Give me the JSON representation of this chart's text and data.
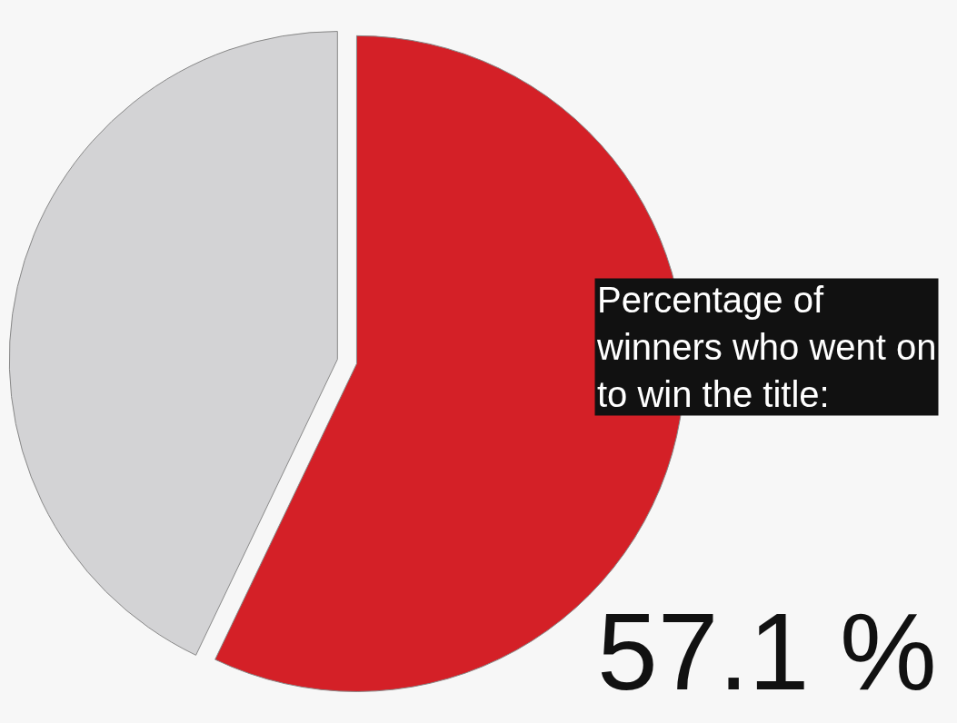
{
  "chart_data": {
    "type": "pie",
    "title": "Percentage of winners who went on to win the title:",
    "categories": [
      null,
      null
    ],
    "values": [
      57.1,
      42.9
    ],
    "colors": [
      "#d42027",
      "#d3d3d5"
    ],
    "value_labels": [
      "57.1 %",
      null
    ],
    "legend": false
  }
}
